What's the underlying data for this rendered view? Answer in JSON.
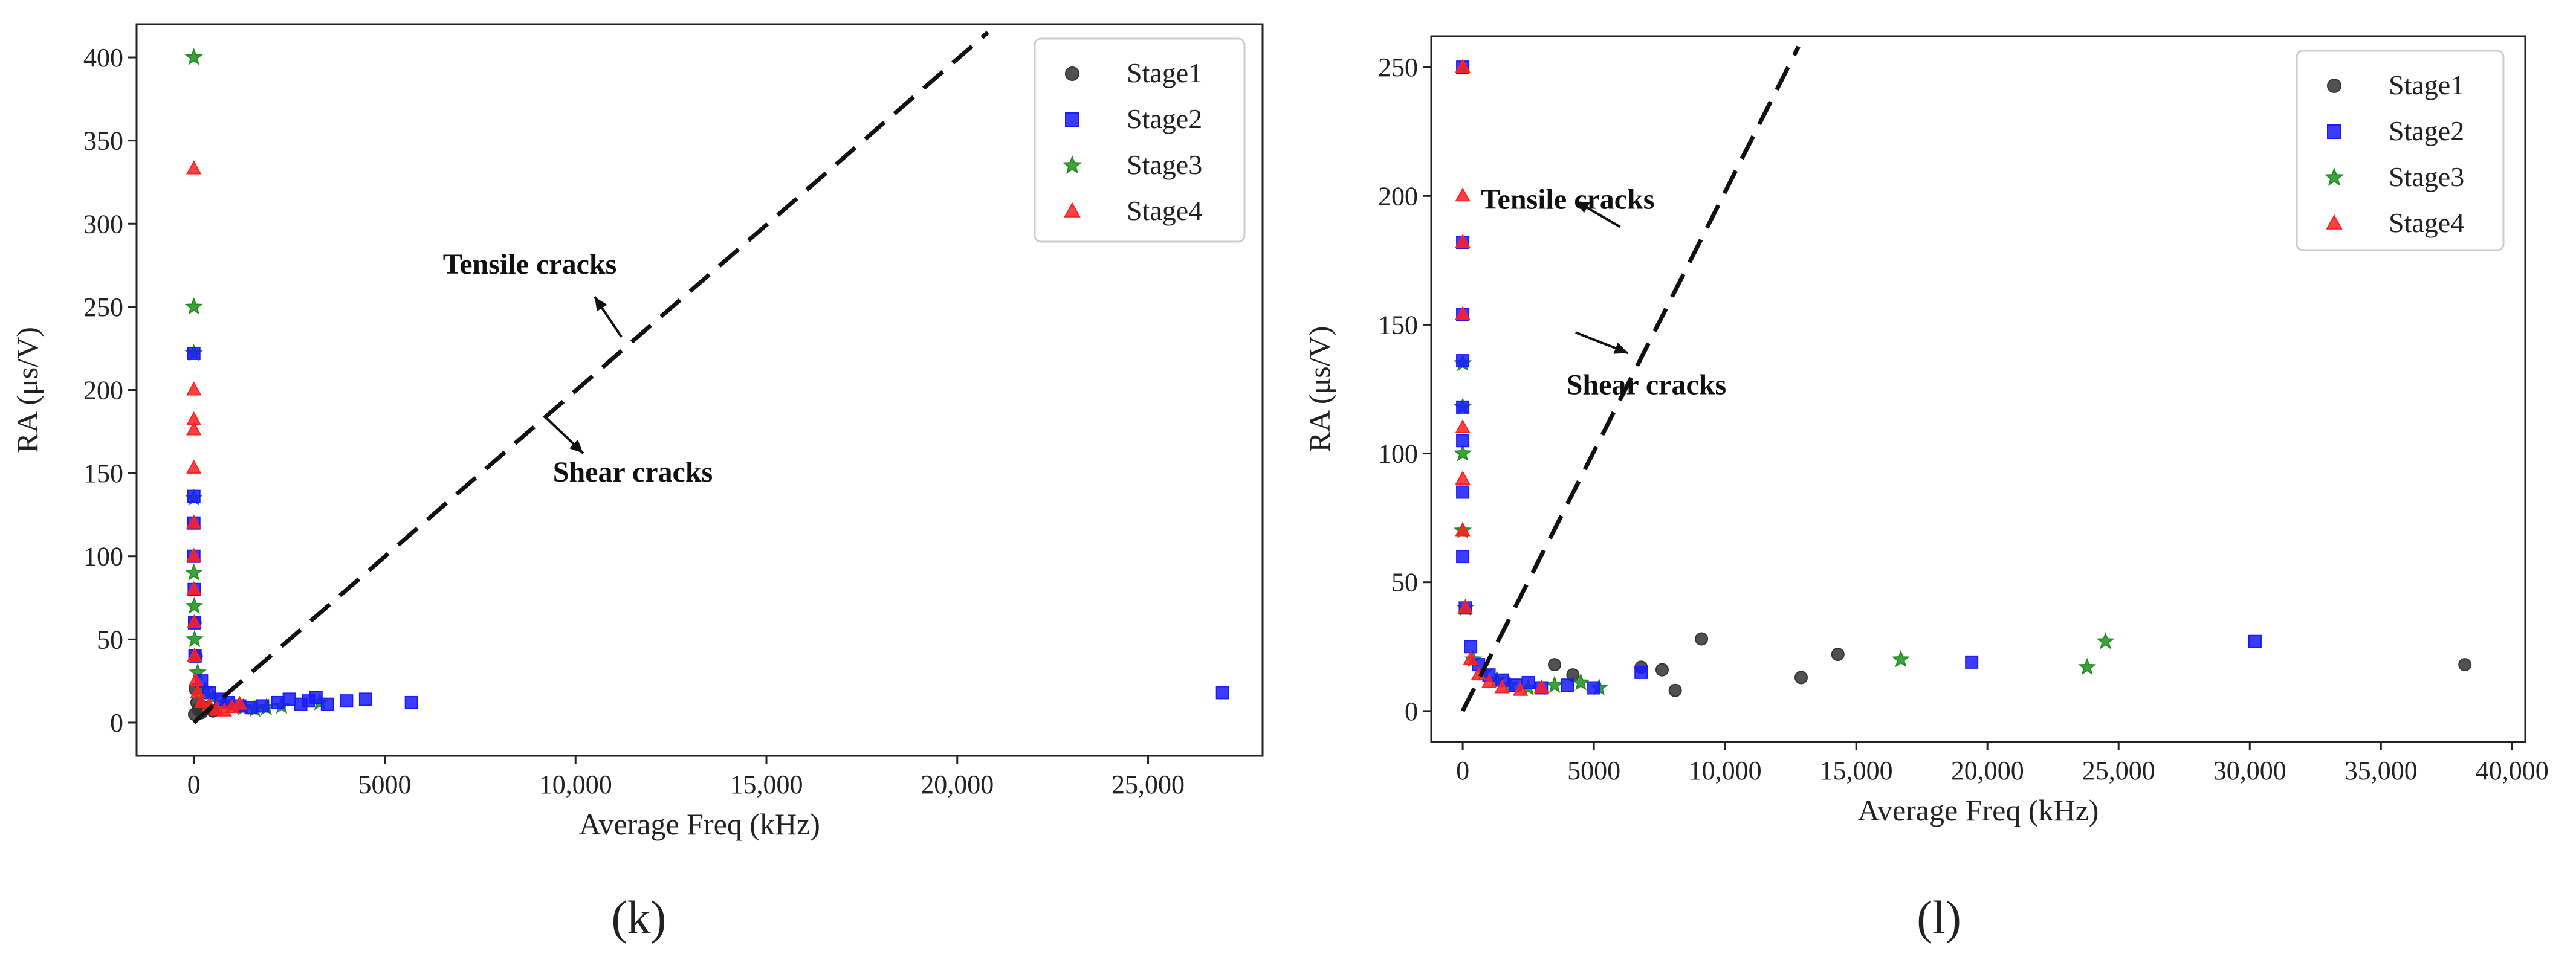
{
  "figure": {
    "panels": [
      "(k)",
      "(l)"
    ]
  },
  "colors": {
    "Stage1": "#333333",
    "Stage2": "#1a1aff",
    "Stage3": "#1f8f1f",
    "Stage4": "#ff2020"
  },
  "chart_data": [
    {
      "type": "scatter",
      "panel_label": "(k)",
      "xlabel": "Average Freq (kHz)",
      "ylabel": "RA (μs/V)",
      "xlim": [
        -1500,
        28000
      ],
      "ylim": [
        -20,
        420
      ],
      "xticks": [
        0,
        5000,
        10000,
        15000,
        20000,
        25000
      ],
      "xtick_labels": [
        "0",
        "5000",
        "10,000",
        "15,000",
        "20,000",
        "25,000"
      ],
      "yticks": [
        0,
        50,
        100,
        150,
        200,
        250,
        300,
        350,
        400
      ],
      "ytick_labels": [
        "0",
        "50",
        "100",
        "150",
        "200",
        "250",
        "300",
        "350",
        "400"
      ],
      "legend_location": "top-right",
      "legend": [
        "Stage1",
        "Stage2",
        "Stage3",
        "Stage4"
      ],
      "divider_line": {
        "x": [
          0,
          20800
        ],
        "y": [
          0,
          415
        ],
        "style": "dashed"
      },
      "annotations": [
        {
          "text": "Tensile cracks",
          "x": 8800,
          "y": 270
        },
        {
          "text": "Shear cracks",
          "x": 11500,
          "y": 145
        }
      ],
      "arrows": [
        {
          "from": [
            11200,
            232
          ],
          "to": [
            10500,
            256
          ]
        },
        {
          "from": [
            9200,
            184
          ],
          "to": [
            10200,
            162
          ]
        }
      ],
      "series": [
        {
          "name": "Stage1",
          "marker": "circle",
          "x": [
            20,
            40,
            60,
            30,
            80,
            120,
            200,
            350,
            500
          ],
          "y": [
            5,
            20,
            40,
            60,
            12,
            8,
            6,
            9,
            7
          ]
        },
        {
          "name": "Stage2",
          "marker": "square",
          "x": [
            0,
            0,
            0,
            0,
            10,
            20,
            30,
            200,
            400,
            700,
            900,
            1200,
            1500,
            1800,
            2200,
            2500,
            2800,
            3000,
            3200,
            3500,
            4000,
            4500,
            5700,
            26950
          ],
          "y": [
            222,
            136,
            120,
            100,
            80,
            60,
            40,
            25,
            18,
            14,
            12,
            10,
            9,
            10,
            12,
            14,
            11,
            13,
            15,
            11,
            13,
            14,
            12,
            18
          ]
        },
        {
          "name": "Stage3",
          "marker": "star",
          "x": [
            0,
            0,
            0,
            0,
            0,
            10,
            20,
            100,
            300,
            500,
            800,
            1000,
            1300,
            1600,
            1900,
            2300,
            3300
          ],
          "y": [
            400,
            250,
            222,
            135,
            90,
            70,
            50,
            30,
            20,
            15,
            12,
            10,
            9,
            8,
            9,
            10,
            12
          ]
        },
        {
          "name": "Stage4",
          "marker": "triangle",
          "x": [
            0,
            0,
            0,
            0,
            0,
            0,
            0,
            0,
            10,
            20,
            50,
            100,
            200,
            400,
            600,
            800,
            1000,
            1200
          ],
          "y": [
            333,
            200,
            182,
            176,
            153,
            120,
            100,
            80,
            60,
            40,
            25,
            18,
            12,
            10,
            8,
            7,
            9,
            11
          ]
        }
      ]
    },
    {
      "type": "scatter",
      "panel_label": "(l)",
      "xlabel": "Average Freq (kHz)",
      "ylabel": "RA (μs/V)",
      "xlim": [
        -1200,
        40500
      ],
      "ylim": [
        -12,
        262
      ],
      "xticks": [
        0,
        5000,
        10000,
        15000,
        20000,
        25000,
        30000,
        35000,
        40000
      ],
      "xtick_labels": [
        "0",
        "5000",
        "10,000",
        "15,000",
        "20,000",
        "25,000",
        "30,000",
        "35,000",
        "40,000"
      ],
      "yticks": [
        0,
        50,
        100,
        150,
        200,
        250
      ],
      "ytick_labels": [
        "0",
        "50",
        "100",
        "150",
        "200",
        "250"
      ],
      "legend_location": "top-right",
      "legend": [
        "Stage1",
        "Stage2",
        "Stage3",
        "Stage4"
      ],
      "divider_line": {
        "x": [
          0,
          12800
        ],
        "y": [
          0,
          258
        ],
        "style": "dashed"
      },
      "annotations": [
        {
          "text": "Tensile cracks",
          "x": 4000,
          "y": 195
        },
        {
          "text": "Shear cracks",
          "x": 7000,
          "y": 123
        }
      ],
      "arrows": [
        {
          "from": [
            6000,
            188
          ],
          "to": [
            4300,
            198
          ]
        },
        {
          "from": [
            4300,
            147
          ],
          "to": [
            6300,
            139
          ]
        }
      ],
      "series": [
        {
          "name": "Stage1",
          "marker": "circle",
          "x": [
            3500,
            4200,
            6800,
            7600,
            8100,
            9100,
            12900,
            14300,
            38200
          ],
          "y": [
            18,
            14,
            17,
            16,
            8,
            28,
            13,
            22,
            18
          ]
        },
        {
          "name": "Stage2",
          "marker": "square",
          "x": [
            0,
            0,
            0,
            0,
            0,
            0,
            0,
            0,
            100,
            300,
            600,
            1000,
            1500,
            2000,
            2500,
            3000,
            4000,
            5000,
            6800,
            19400,
            30200
          ],
          "y": [
            250,
            182,
            154,
            136,
            118,
            105,
            85,
            60,
            40,
            25,
            18,
            14,
            12,
            10,
            11,
            9,
            10,
            9,
            15,
            19,
            27
          ]
        },
        {
          "name": "Stage3",
          "marker": "star",
          "x": [
            0,
            0,
            0,
            0,
            100,
            400,
            800,
            1300,
            1800,
            2500,
            3500,
            4500,
            5200,
            16700,
            23800,
            24500
          ],
          "y": [
            135,
            118,
            100,
            70,
            40,
            20,
            15,
            12,
            10,
            9,
            10,
            11,
            9,
            20,
            17,
            27
          ]
        },
        {
          "name": "Stage4",
          "marker": "triangle",
          "x": [
            0,
            0,
            0,
            0,
            0,
            0,
            0,
            100,
            300,
            600,
            1000,
            1500,
            2200,
            3000
          ],
          "y": [
            250,
            200,
            182,
            154,
            110,
            90,
            70,
            40,
            20,
            14,
            11,
            9,
            8,
            9
          ]
        }
      ]
    }
  ]
}
